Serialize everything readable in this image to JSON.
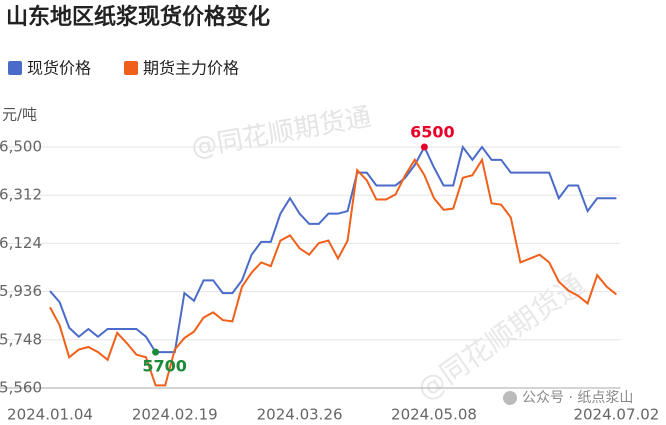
{
  "chart_data": {
    "type": "line",
    "title": "山东地区纸浆现货价格变化",
    "y_label": "元/吨",
    "categories": [
      "2024.01.04",
      null,
      null,
      null,
      null,
      null,
      null,
      null,
      null,
      null,
      null,
      null,
      null,
      "2024.02.19",
      null,
      null,
      null,
      null,
      null,
      null,
      null,
      null,
      null,
      null,
      null,
      null,
      "2024.03.26",
      null,
      null,
      null,
      null,
      null,
      null,
      null,
      null,
      null,
      null,
      null,
      null,
      null,
      "2024.05.08",
      null,
      null,
      null,
      null,
      null,
      null,
      null,
      null,
      null,
      null,
      null,
      null,
      null,
      null,
      null,
      null,
      null,
      null,
      "2024.07.02"
    ],
    "series": [
      {
        "name": "现货价格",
        "color": "#4a6bc9",
        "values": [
          5938,
          5895,
          5795,
          5760,
          5790,
          5760,
          5790,
          5790,
          5790,
          5790,
          5760,
          5700,
          5700,
          5700,
          5930,
          5900,
          5980,
          5980,
          5930,
          5930,
          5980,
          6080,
          6130,
          6130,
          6240,
          6300,
          6240,
          6200,
          6200,
          6240,
          6240,
          6250,
          6400,
          6400,
          6350,
          6350,
          6350,
          6380,
          6430,
          6500,
          6420,
          6350,
          6350,
          6500,
          6450,
          6500,
          6450,
          6450,
          6400,
          6400,
          6400,
          6400,
          6400,
          6300,
          6350,
          6350,
          6250,
          6300,
          6300,
          6300
        ]
      },
      {
        "name": "期货主力价格",
        "color": "#f0601a",
        "values": [
          5875,
          5805,
          5680,
          5710,
          5720,
          5700,
          5670,
          5775,
          5735,
          5690,
          5680,
          5570,
          5570,
          5710,
          5755,
          5780,
          5835,
          5855,
          5825,
          5820,
          5955,
          6010,
          6050,
          6035,
          6135,
          6155,
          6105,
          6080,
          6125,
          6135,
          6065,
          6135,
          6410,
          6370,
          6295,
          6295,
          6315,
          6390,
          6450,
          6390,
          6300,
          6255,
          6260,
          6380,
          6390,
          6450,
          6280,
          6275,
          6225,
          6050,
          6065,
          6080,
          6050,
          5975,
          5940,
          5920,
          5890,
          6000,
          5955,
          5925
        ]
      }
    ],
    "ylim": [
      5560,
      6500
    ],
    "yticks": [
      {
        "value": 5560,
        "label": "5,560"
      },
      {
        "value": 5748,
        "label": "5,748"
      },
      {
        "value": 5936,
        "label": "5,936"
      },
      {
        "value": 6124,
        "label": "6,124"
      },
      {
        "value": 6312,
        "label": "6,312"
      },
      {
        "value": 6500,
        "label": "6,500"
      }
    ],
    "grid": true,
    "annotations": [
      {
        "value": 6500,
        "color": "#e8002a"
      },
      {
        "value": 5700,
        "color": "#1a8a3a"
      }
    ],
    "watermarks": [
      "@同花顺期货通",
      "@同花顺期货通",
      "公众号 · 纸点浆山"
    ]
  }
}
